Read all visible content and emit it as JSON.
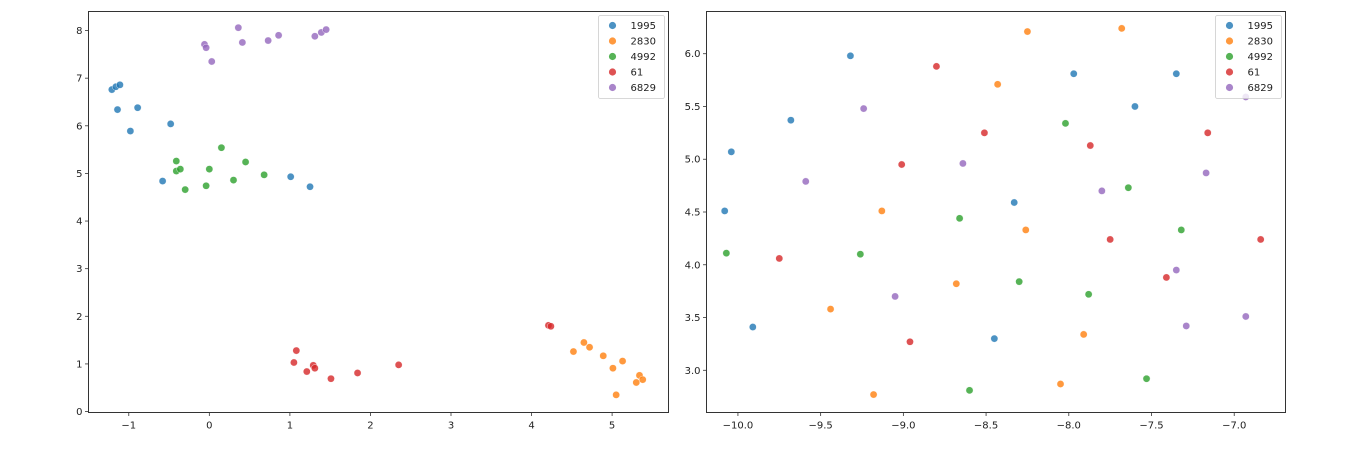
{
  "chart_data": [
    {
      "type": "scatter",
      "title": "",
      "xlabel": "",
      "ylabel": "",
      "xlim": [
        -1.5,
        5.7
      ],
      "ylim": [
        -0.02,
        8.4
      ],
      "xticks": [
        -1,
        0,
        1,
        2,
        3,
        4,
        5
      ],
      "yticks": [
        0,
        1,
        2,
        3,
        4,
        5,
        6,
        7,
        8
      ],
      "grid": false,
      "legend_position": "upper right",
      "series": [
        {
          "name": "1995",
          "color": "#1f77b4",
          "x": [
            -1.21,
            -1.16,
            -1.11,
            -1.14,
            -0.89,
            -0.98,
            -0.48,
            -0.58,
            1.01,
            1.25
          ],
          "y": [
            6.76,
            6.82,
            6.86,
            6.34,
            6.38,
            5.89,
            6.04,
            4.84,
            4.93,
            4.72
          ]
        },
        {
          "name": "2830",
          "color": "#ff7f0e",
          "x": [
            4.52,
            4.65,
            4.72,
            4.89,
            5.01,
            5.13,
            5.3,
            5.34,
            5.05,
            5.38
          ],
          "y": [
            1.26,
            1.45,
            1.35,
            1.17,
            0.91,
            1.06,
            0.61,
            0.76,
            0.35,
            0.67
          ]
        },
        {
          "name": "4992",
          "color": "#2ca02c",
          "x": [
            -0.41,
            -0.41,
            -0.36,
            -0.3,
            0.0,
            -0.04,
            0.15,
            0.45,
            0.3,
            0.68
          ],
          "y": [
            5.26,
            5.05,
            5.09,
            4.66,
            5.09,
            4.74,
            5.54,
            5.24,
            4.86,
            4.97
          ]
        },
        {
          "name": "61",
          "color": "#d62728",
          "x": [
            1.05,
            1.08,
            1.21,
            1.29,
            1.31,
            1.51,
            1.84,
            2.35,
            4.21,
            4.24
          ],
          "y": [
            1.03,
            1.28,
            0.84,
            0.97,
            0.91,
            0.69,
            0.81,
            0.98,
            1.81,
            1.79
          ]
        },
        {
          "name": "6829",
          "color": "#9467bd",
          "x": [
            -0.06,
            -0.04,
            0.03,
            0.36,
            0.41,
            0.73,
            0.86,
            1.31,
            1.39,
            1.45
          ],
          "y": [
            7.71,
            7.64,
            7.35,
            8.06,
            7.75,
            7.79,
            7.9,
            7.88,
            7.96,
            8.02
          ]
        }
      ]
    },
    {
      "type": "scatter",
      "title": "",
      "xlabel": "",
      "ylabel": "",
      "xlim": [
        -10.19,
        -6.69
      ],
      "ylim": [
        2.6,
        6.4
      ],
      "xticks": [
        -10.0,
        -9.5,
        -9.0,
        -8.5,
        -8.0,
        -7.5,
        -7.0
      ],
      "yticks": [
        3.0,
        3.5,
        4.0,
        4.5,
        5.0,
        5.5,
        6.0
      ],
      "grid": false,
      "legend_position": "upper right",
      "series": [
        {
          "name": "1995",
          "color": "#1f77b4",
          "x": [
            -10.08,
            -10.04,
            -9.68,
            -9.32,
            -9.91,
            -8.33,
            -8.45,
            -7.97,
            -7.6,
            -7.35
          ],
          "y": [
            4.51,
            5.07,
            5.37,
            5.98,
            3.41,
            4.59,
            3.3,
            5.81,
            5.5,
            5.81
          ]
        },
        {
          "name": "2830",
          "color": "#ff7f0e",
          "x": [
            -9.13,
            -9.44,
            -9.18,
            -8.68,
            -8.43,
            -8.25,
            -8.26,
            -8.05,
            -7.68,
            -7.91
          ],
          "y": [
            4.51,
            3.58,
            2.77,
            3.82,
            5.71,
            6.21,
            4.33,
            2.87,
            6.24,
            3.34
          ]
        },
        {
          "name": "4992",
          "color": "#2ca02c",
          "x": [
            -10.07,
            -9.26,
            -8.66,
            -8.6,
            -8.3,
            -8.02,
            -7.88,
            -7.64,
            -7.53,
            -7.32
          ],
          "y": [
            4.11,
            4.1,
            4.44,
            2.81,
            3.84,
            5.34,
            3.72,
            4.73,
            2.92,
            4.33
          ]
        },
        {
          "name": "61",
          "color": "#d62728",
          "x": [
            -9.75,
            -9.01,
            -8.96,
            -8.8,
            -8.51,
            -7.87,
            -7.75,
            -7.41,
            -7.16,
            -6.84
          ],
          "y": [
            4.06,
            4.95,
            3.27,
            5.88,
            5.25,
            5.13,
            4.24,
            3.88,
            5.25,
            4.24
          ]
        },
        {
          "name": "6829",
          "color": "#9467bd",
          "x": [
            -9.59,
            -9.24,
            -9.05,
            -8.64,
            -7.8,
            -7.35,
            -7.29,
            -7.17,
            -6.93,
            -6.93
          ],
          "y": [
            4.79,
            5.48,
            3.7,
            4.96,
            4.7,
            3.95,
            3.42,
            4.87,
            3.51,
            5.59
          ]
        }
      ]
    }
  ],
  "legend": {
    "entries": [
      {
        "label": "1995",
        "color": "#1f77b4"
      },
      {
        "label": "2830",
        "color": "#ff7f0e"
      },
      {
        "label": "4992",
        "color": "#2ca02c"
      },
      {
        "label": "61",
        "color": "#d62728"
      },
      {
        "label": "6829",
        "color": "#9467bd"
      }
    ]
  },
  "axes": [
    {
      "xtick_labels": [
        "−1",
        "0",
        "1",
        "2",
        "3",
        "4",
        "5"
      ],
      "ytick_labels": [
        "0",
        "1",
        "2",
        "3",
        "4",
        "5",
        "6",
        "7",
        "8"
      ]
    },
    {
      "xtick_labels": [
        "−10.0",
        "−9.5",
        "−9.0",
        "−8.5",
        "−8.0",
        "−7.5",
        "−7.0"
      ],
      "ytick_labels": [
        "3.0",
        "3.5",
        "4.0",
        "4.5",
        "5.0",
        "5.5",
        "6.0"
      ]
    }
  ]
}
